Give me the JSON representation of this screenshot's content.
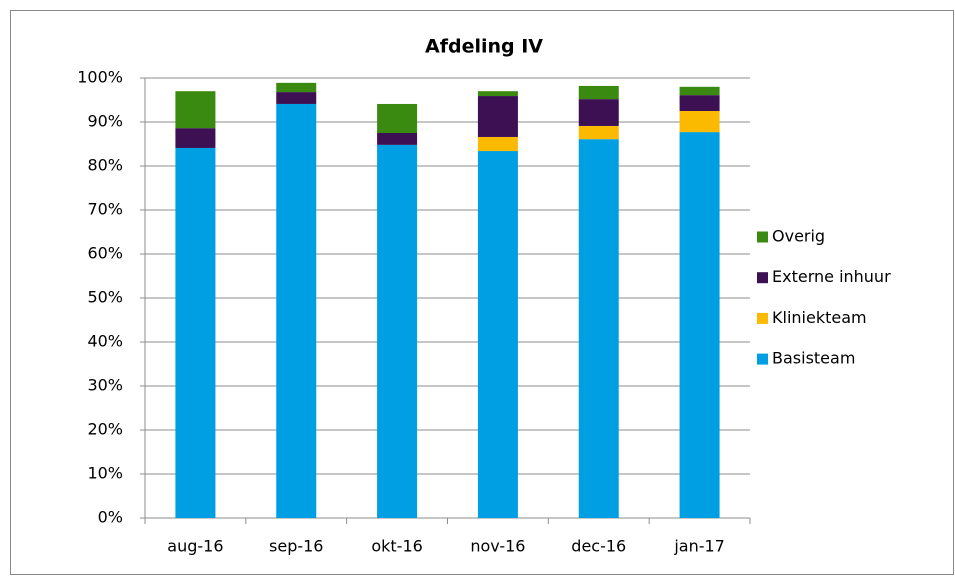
{
  "chart_data": {
    "type": "stacked_bar",
    "title": "Afdeling IV",
    "categories": [
      "aug-16",
      "sep-16",
      "okt-16",
      "nov-16",
      "dec-16",
      "jan-17"
    ],
    "series": [
      {
        "name": "Basisteam",
        "color": "#009fe3",
        "values": [
          84.1,
          94.1,
          84.8,
          83.4,
          86.1,
          87.7
        ]
      },
      {
        "name": "Kliniekteam",
        "color": "#fbb900",
        "values": [
          0,
          0,
          0,
          3.2,
          3.0,
          4.8
        ]
      },
      {
        "name": "Externe inhuur",
        "color": "#3c1053",
        "values": [
          4.5,
          2.7,
          2.7,
          9.3,
          6.1,
          3.6
        ]
      },
      {
        "name": "Overig",
        "color": "#3a8a12",
        "values": [
          8.4,
          2.1,
          6.6,
          1.1,
          3.0,
          1.9
        ]
      }
    ],
    "ylim": [
      0,
      100
    ],
    "yticks": [
      {
        "value": 0,
        "label": "0%"
      },
      {
        "value": 10,
        "label": "10%"
      },
      {
        "value": 20,
        "label": "20%"
      },
      {
        "value": 30,
        "label": "30%"
      },
      {
        "value": 40,
        "label": "40%"
      },
      {
        "value": 50,
        "label": "50%"
      },
      {
        "value": 60,
        "label": "60%"
      },
      {
        "value": 70,
        "label": "70%"
      },
      {
        "value": 80,
        "label": "80%"
      },
      {
        "value": 90,
        "label": "90%"
      },
      {
        "value": 100,
        "label": "100%"
      }
    ],
    "grid": true,
    "legend": "right"
  }
}
